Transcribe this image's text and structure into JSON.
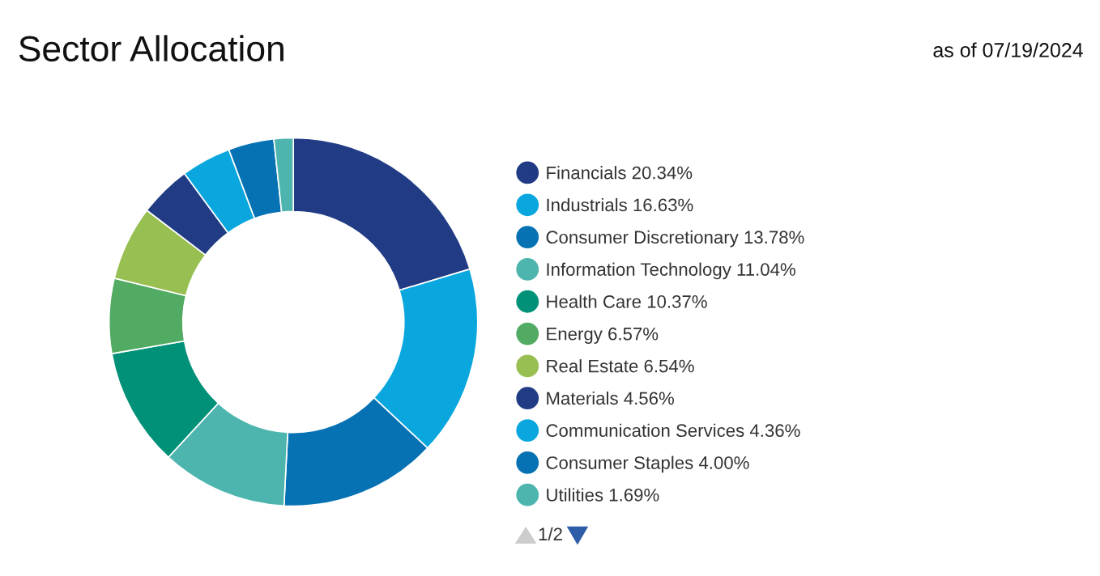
{
  "chart_data": {
    "type": "donut",
    "title": "Sector Allocation",
    "annotations": [
      "as of 07/19/2024",
      "1/2"
    ],
    "categories": [
      "Financials",
      "Industrials",
      "Consumer Discretionary",
      "Information Technology",
      "Health Care",
      "Energy",
      "Real Estate",
      "Materials",
      "Communication Services",
      "Consumer Staples",
      "Utilities"
    ],
    "values": [
      20.34,
      16.63,
      13.78,
      11.04,
      10.37,
      6.57,
      6.54,
      4.56,
      4.36,
      4.0,
      1.69
    ],
    "value_labels": [
      "20.34%",
      "16.63%",
      "13.78%",
      "11.04%",
      "10.37%",
      "6.57%",
      "6.54%",
      "4.56%",
      "4.36%",
      "4.00%",
      "1.69%"
    ],
    "colors": [
      "#213b85",
      "#0aa7df",
      "#0672b3",
      "#4db5ae",
      "#009178",
      "#52ab63",
      "#98bf51",
      "#213b85",
      "#0aa7df",
      "#0672b3",
      "#4db5ae"
    ],
    "legend": "right"
  }
}
